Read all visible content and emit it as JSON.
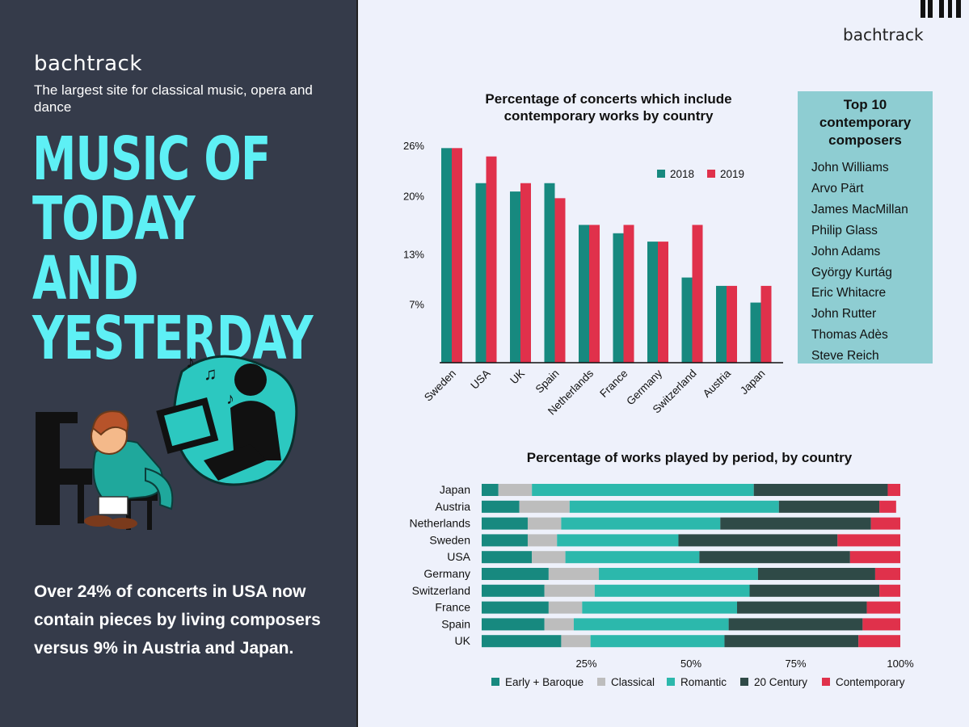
{
  "left": {
    "brand": "bachtrack",
    "tagline": "The largest site for classical music, opera and dance",
    "title_lines": [
      "MUSIC OF",
      "TODAY AND",
      "YESTERDAY"
    ],
    "bottom_text": "Over 24% of concerts in USA now contain pieces by living composers versus 9% in Austria and Japan."
  },
  "right": {
    "brand": "bachtrack",
    "composers_title": "Top 10 contemporary composers",
    "composers": [
      "John Williams",
      "Arvo Pärt",
      "James MacMillan",
      "Philip Glass",
      "John Adams",
      "György Kurtág",
      "Eric Whitacre",
      "John Rutter",
      "Thomas Adès",
      "Steve Reich"
    ]
  },
  "chart_data": [
    {
      "type": "bar",
      "title": "Percentage of concerts which include contemporary works by country",
      "categories": [
        "Sweden",
        "USA",
        "UK",
        "Spain",
        "Netherlands",
        "France",
        "Germany",
        "Switzerland",
        "Austria",
        "Japan"
      ],
      "series": [
        {
          "name": "2018",
          "color": "#17897f",
          "values": [
            25.7,
            21.5,
            20.5,
            21.5,
            16.5,
            15.5,
            14.5,
            10.2,
            9.2,
            7.2
          ]
        },
        {
          "name": "2019",
          "color": "#e0314b",
          "values": [
            25.7,
            24.7,
            21.5,
            19.7,
            16.5,
            16.5,
            14.5,
            16.5,
            9.2,
            9.2
          ]
        }
      ],
      "ylim": [
        0,
        26.7
      ],
      "yticks": [
        7,
        13,
        20,
        26
      ],
      "ytick_labels": [
        "7%",
        "13%",
        "20%",
        "26%"
      ],
      "legend": "top-right",
      "grid": false
    },
    {
      "type": "bar",
      "stacked": true,
      "orientation": "horizontal",
      "title": "Percentage of works played by period, by country",
      "categories": [
        "Japan",
        "Austria",
        "Netherlands",
        "Sweden",
        "USA",
        "Germany",
        "Switzerland",
        "France",
        "Spain",
        "UK"
      ],
      "series": [
        {
          "name": "Early + Baroque",
          "color": "#17897f",
          "values": [
            4,
            9,
            11,
            11,
            12,
            16,
            15,
            16,
            15,
            19
          ]
        },
        {
          "name": "Classical",
          "color": "#bdbdbd",
          "values": [
            8,
            12,
            8,
            7,
            8,
            12,
            12,
            8,
            7,
            7
          ]
        },
        {
          "name": "Romantic",
          "color": "#2cb8ac",
          "values": [
            53,
            50,
            38,
            29,
            32,
            38,
            37,
            37,
            37,
            32
          ]
        },
        {
          "name": "20 Century",
          "color": "#2f4a47",
          "values": [
            32,
            24,
            36,
            38,
            36,
            28,
            31,
            31,
            32,
            32
          ]
        },
        {
          "name": "Contemporary",
          "color": "#e0314b",
          "values": [
            3,
            4,
            7,
            15,
            12,
            6,
            5,
            8,
            9,
            10
          ]
        }
      ],
      "xlim": [
        0,
        100
      ],
      "xticks": [
        25,
        50,
        75,
        100
      ],
      "xtick_labels": [
        "25%",
        "50%",
        "75%",
        "100%"
      ],
      "legend": "bottom",
      "grid": false
    }
  ]
}
